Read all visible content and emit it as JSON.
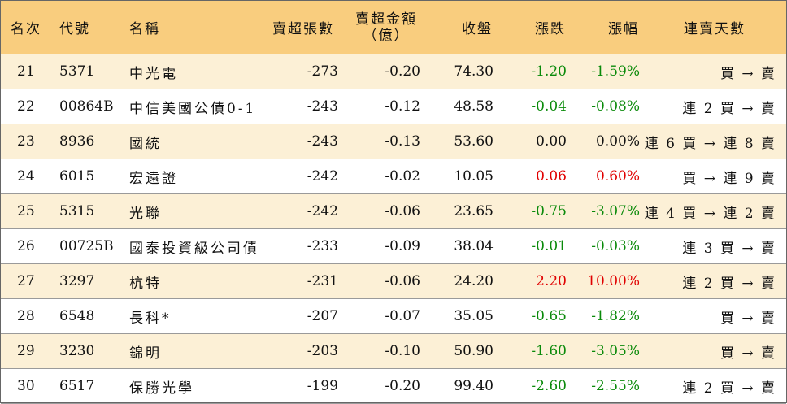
{
  "header": {
    "rank": "名次",
    "code": "代號",
    "name": "名稱",
    "net_sell_shares": "賣超張數",
    "net_sell_amount_line1": "賣超金額",
    "net_sell_amount_line2": "（億）",
    "close": "收盤",
    "change": "漲跌",
    "pct": "漲幅",
    "streak": "連賣天數"
  },
  "colors": {
    "header_bg": "#f9cd7e",
    "alt_row_bg": "#fcf0d6",
    "up": "#e00000",
    "down": "#0a8a0a"
  },
  "rows": [
    {
      "rank": "21",
      "code": "5371",
      "name": "中光電",
      "shares": "-273",
      "amount": "-0.20",
      "close": "74.30",
      "change": "-1.20",
      "pct": "-1.59%",
      "dir": "green",
      "streak": "買 → 賣"
    },
    {
      "rank": "22",
      "code": "00864B",
      "name": "中信美國公債0-1",
      "shares": "-243",
      "amount": "-0.12",
      "close": "48.58",
      "change": "-0.04",
      "pct": "-0.08%",
      "dir": "green",
      "streak": "連 2 買 → 賣"
    },
    {
      "rank": "23",
      "code": "8936",
      "name": "國統",
      "shares": "-243",
      "amount": "-0.13",
      "close": "53.60",
      "change": "0.00",
      "pct": "0.00%",
      "dir": "black",
      "streak": "連 6 買 → 連 8 賣"
    },
    {
      "rank": "24",
      "code": "6015",
      "name": "宏遠證",
      "shares": "-242",
      "amount": "-0.02",
      "close": "10.05",
      "change": "0.06",
      "pct": "0.60%",
      "dir": "red",
      "streak": "買 → 連 9 賣"
    },
    {
      "rank": "25",
      "code": "5315",
      "name": "光聯",
      "shares": "-242",
      "amount": "-0.06",
      "close": "23.65",
      "change": "-0.75",
      "pct": "-3.07%",
      "dir": "green",
      "streak": "連 4 買 → 連 2 賣"
    },
    {
      "rank": "26",
      "code": "00725B",
      "name": "國泰投資級公司債",
      "shares": "-233",
      "amount": "-0.09",
      "close": "38.04",
      "change": "-0.01",
      "pct": "-0.03%",
      "dir": "green",
      "streak": "連 3 買 → 賣"
    },
    {
      "rank": "27",
      "code": "3297",
      "name": "杭特",
      "shares": "-231",
      "amount": "-0.06",
      "close": "24.20",
      "change": "2.20",
      "pct": "10.00%",
      "dir": "red",
      "streak": "連 2 買 → 賣"
    },
    {
      "rank": "28",
      "code": "6548",
      "name": "長科*",
      "shares": "-207",
      "amount": "-0.07",
      "close": "35.05",
      "change": "-0.65",
      "pct": "-1.82%",
      "dir": "green",
      "streak": "買 → 賣"
    },
    {
      "rank": "29",
      "code": "3230",
      "name": "錦明",
      "shares": "-203",
      "amount": "-0.10",
      "close": "50.90",
      "change": "-1.60",
      "pct": "-3.05%",
      "dir": "green",
      "streak": "買 → 賣"
    },
    {
      "rank": "30",
      "code": "6517",
      "name": "保勝光學",
      "shares": "-199",
      "amount": "-0.20",
      "close": "99.40",
      "change": "-2.60",
      "pct": "-2.55%",
      "dir": "green",
      "streak": "連 2 買 → 賣"
    }
  ]
}
